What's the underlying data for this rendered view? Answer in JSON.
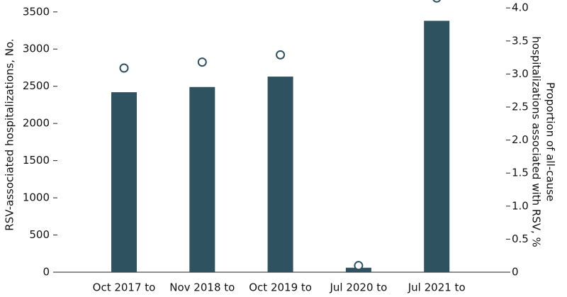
{
  "chart_data": {
    "type": "bar",
    "categories": [
      "Oct 2017 to",
      "Nov 2018 to",
      "Oct 2019 to",
      "Jul 2020 to",
      "Jul 2021 to"
    ],
    "y_label": "RSV-associated hospitalizations, No.",
    "y2_label": [
      "Proportion of all-cause",
      "hospitalizations associated with RSV, %"
    ],
    "series": [
      {
        "type": "bar",
        "color": "#2e5260",
        "values": [
          2420,
          2490,
          2630,
          60,
          3380
        ]
      },
      {
        "type": "scatter",
        "axis": "y2",
        "color": "#2e5260",
        "values": [
          3.09,
          3.18,
          3.29,
          0.1,
          4.15
        ]
      }
    ],
    "ylim": [
      0,
      3660
    ],
    "yticks": [
      0,
      500,
      1000,
      1500,
      2000,
      2500,
      3000,
      3500
    ],
    "y2lim": [
      0,
      4.12
    ],
    "y2ticks": [
      0,
      0.5,
      {
        "value": 1,
        "label": "1.0"
      },
      1.5,
      {
        "value": 2,
        "label": "2.0"
      },
      2.5,
      {
        "value": 3,
        "label": "3.0"
      },
      3.5,
      {
        "value": 4,
        "label": "4.0"
      }
    ]
  }
}
